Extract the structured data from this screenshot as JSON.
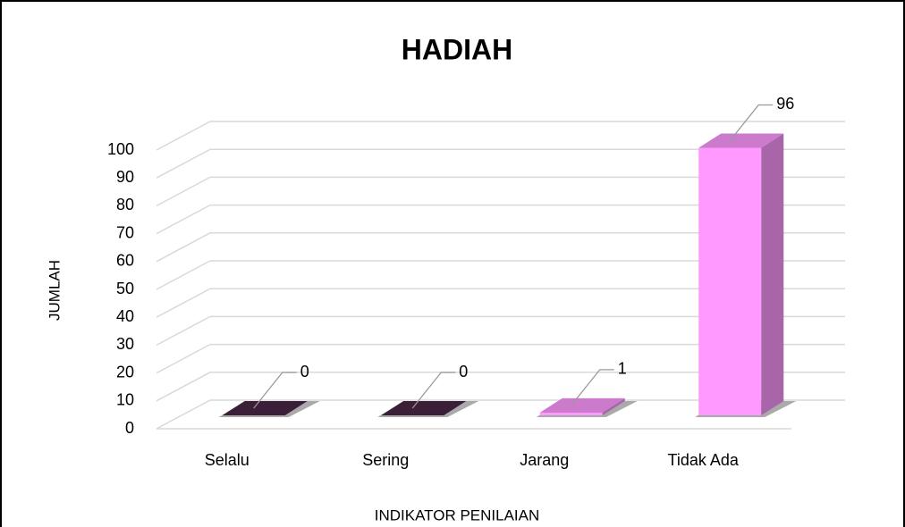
{
  "chart_data": {
    "type": "bar3d",
    "title": "HADIAH",
    "x_label": "INDIKATOR PENILAIAN",
    "y_label": "JUMLAH",
    "categories": [
      "Selalu",
      "Sering",
      "Jarang",
      "Tidak Ada"
    ],
    "values": [
      0,
      0,
      1,
      96
    ],
    "colors": [
      "#4a2545",
      "#4a2545",
      "#ff99ff",
      "#ff99ff"
    ],
    "ylim": [
      0,
      100
    ],
    "yticks": [
      0,
      10,
      20,
      30,
      40,
      50,
      60,
      70,
      80,
      90,
      100
    ],
    "grid": true
  }
}
